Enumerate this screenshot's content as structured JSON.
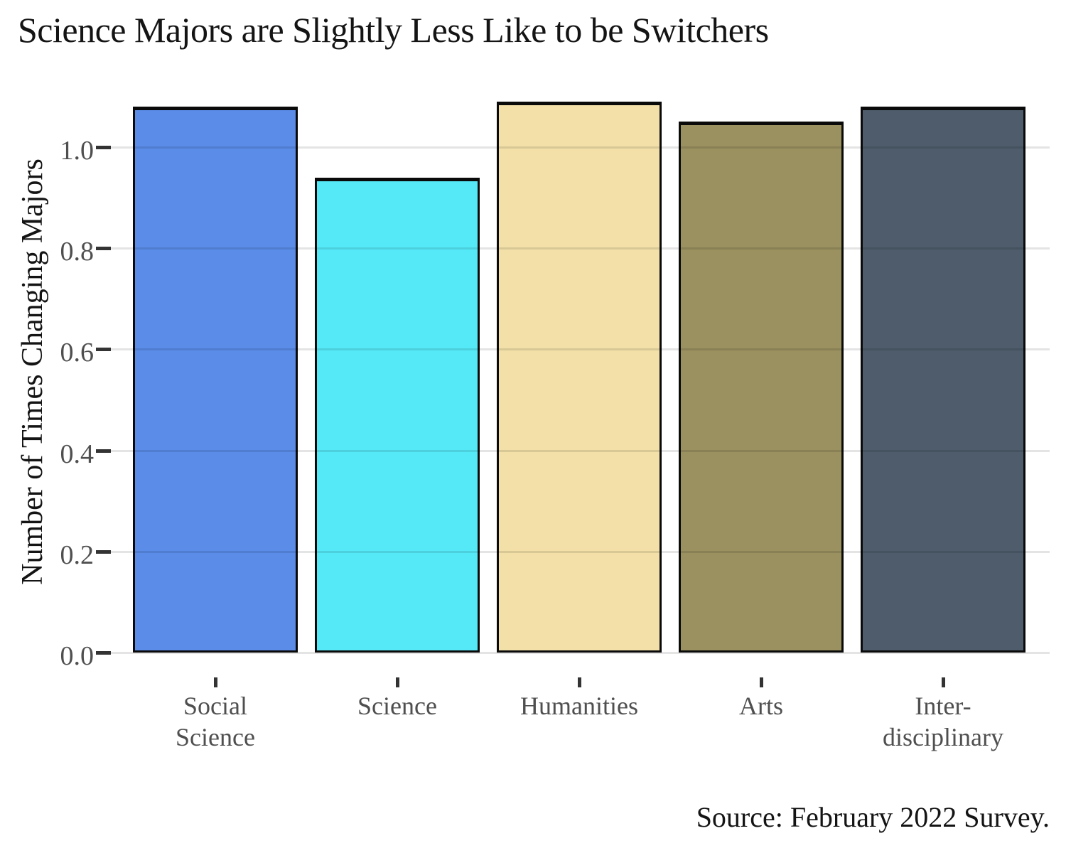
{
  "title": "Science Majors are Slightly Less Like to be Switchers",
  "source": "Source: February 2022 Survey.",
  "chart_data": {
    "type": "bar",
    "title": "Science Majors are Slightly Less Like to be Switchers",
    "xlabel": "",
    "ylabel": "Number of Times Changing Majors",
    "categories": [
      "Social Science",
      "Science",
      "Humanities",
      "Arts",
      "Inter-disciplinary"
    ],
    "category_tick_lines": [
      [
        "Social",
        "Science"
      ],
      [
        "Science"
      ],
      [
        "Humanities"
      ],
      [
        "Arts"
      ],
      [
        "Inter-",
        "disciplinary"
      ]
    ],
    "values": [
      1.08,
      0.94,
      1.09,
      1.05,
      1.08
    ],
    "bar_colors": [
      "#5A8CE8",
      "#55E9F8",
      "#F2E0A8",
      "#9A9060",
      "#4E5C6B"
    ],
    "bar_border_color": "#0a0a0a",
    "y_ticks": [
      0.0,
      0.2,
      0.4,
      0.6,
      0.8,
      1.0
    ],
    "y_tick_labels": [
      "0.0",
      "0.2",
      "0.4",
      "0.6",
      "0.8",
      "1.0"
    ],
    "ylim": [
      0,
      1.13
    ],
    "grid": "horizontal",
    "gridline_color": "#e3e3e3",
    "legend": "none",
    "text_colors": {
      "title": "#141414",
      "axis_title": "#141414",
      "tick_labels": "#4f4f4f",
      "source": "#141414"
    }
  }
}
